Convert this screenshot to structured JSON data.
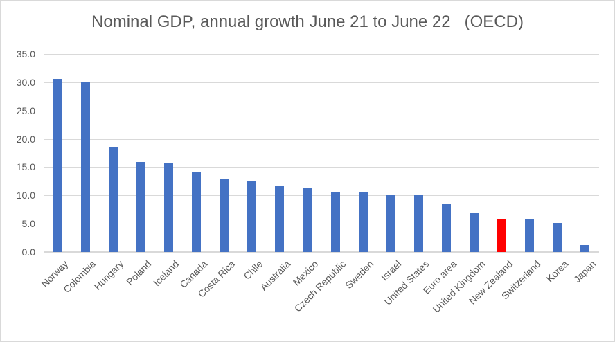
{
  "window": {
    "background_color": "#FFFFFF",
    "border_color": "#D9D9D9"
  },
  "chart_data": {
    "type": "bar",
    "title": "Nominal GDP, annual growth June 21 to June 22   (OECD)",
    "categories": [
      "Norway",
      "Colombia",
      "Hungary",
      "Poland",
      "Iceland",
      "Canada",
      "Costa Rica",
      "Chile",
      "Australia",
      "Mexico",
      "Czech Republic",
      "Sweden",
      "Israel",
      "United States",
      "Euro area",
      "United Kingdom",
      "New Zealand",
      "Switzerland",
      "Korea",
      "Japan"
    ],
    "values": [
      30.6,
      30.0,
      18.6,
      15.9,
      15.8,
      14.2,
      13.0,
      12.6,
      11.7,
      11.3,
      10.5,
      10.5,
      10.1,
      10.0,
      8.5,
      7.0,
      5.9,
      5.8,
      5.1,
      1.2
    ],
    "highlighted_category": "New Zealand",
    "xlabel": "",
    "ylabel": "",
    "ylim": [
      0,
      35
    ],
    "ytick_values": [
      0,
      5,
      10,
      15,
      20,
      25,
      30,
      35
    ],
    "ytick_labels": [
      "0.0",
      "5.0",
      "10.0",
      "15.0",
      "20.0",
      "25.0",
      "30.0",
      "35.0"
    ],
    "x_label_rotation_deg": 45,
    "grid": "horizontal",
    "legend_position": "none",
    "colors": {
      "bar": "#4472C4",
      "highlight": "#FF0000",
      "gridline": "#D9D9D9",
      "axis_text": "#595959",
      "title_text": "#595959"
    }
  }
}
